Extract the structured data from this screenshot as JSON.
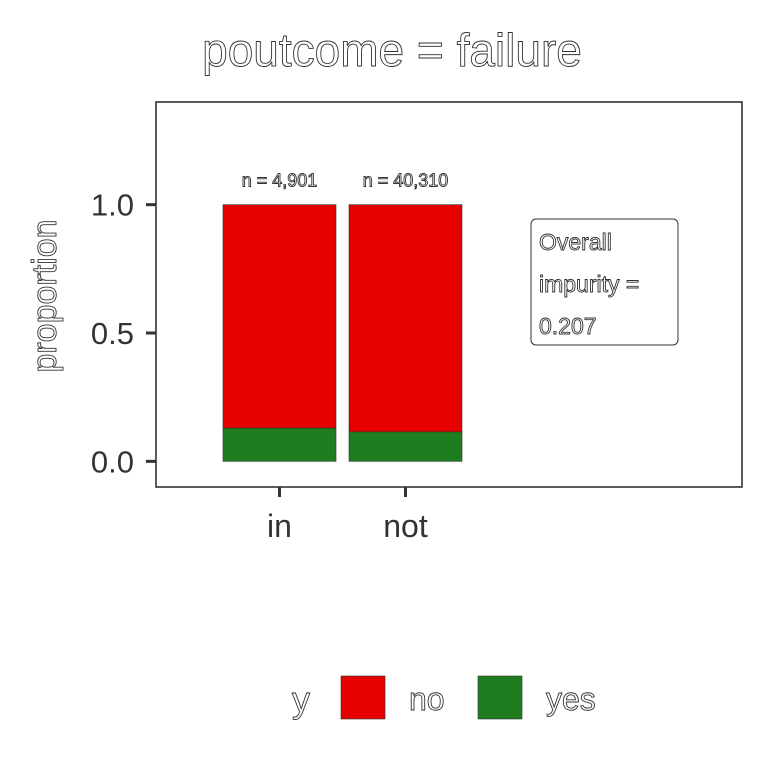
{
  "chart_data": {
    "type": "bar",
    "title": "poutcome = failure",
    "xlabel": "",
    "ylabel": "proportion",
    "categories": [
      "in",
      "not"
    ],
    "series": [
      {
        "name": "no",
        "values": [
          0.87,
          0.885
        ]
      },
      {
        "name": "yes",
        "values": [
          0.13,
          0.115
        ]
      }
    ],
    "bar_labels": [
      "n = 4,901",
      "n = 40,310"
    ],
    "annotation": {
      "line1": "Overall",
      "line2": "impurity =",
      "line3": "0.207"
    },
    "ylim": [
      -0.1,
      1.4
    ],
    "yticks": [
      {
        "value": 0,
        "label": "0.0"
      },
      {
        "value": 0.5,
        "label": "0.5"
      },
      {
        "value": 1,
        "label": "1.0"
      }
    ],
    "legend": {
      "title": "y",
      "position": "bottom"
    },
    "colors": {
      "no": "#e60000",
      "yes": "#1e7d1e"
    },
    "stacked": true,
    "grid": false
  }
}
